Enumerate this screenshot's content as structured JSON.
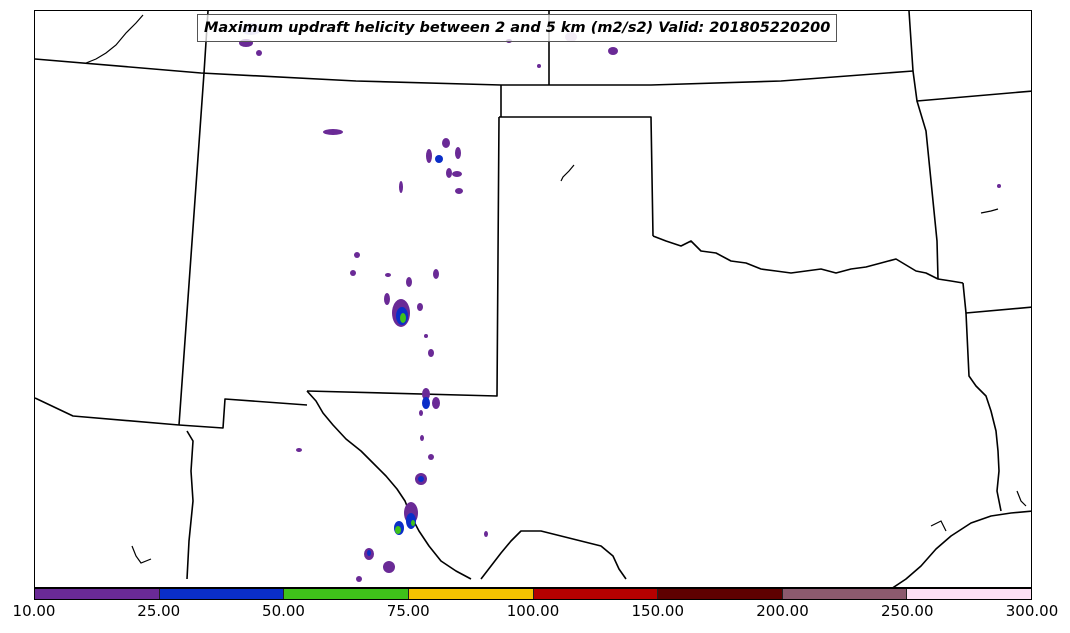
{
  "map": {
    "title": "Maximum updraft helicity between 2 and 5 km (m2/s2) Valid: 201805220200",
    "region": "Southern Plains / Southwest US",
    "colors": {
      "border": "#000000",
      "background": "#ffffff"
    }
  },
  "colorbar": {
    "segments": [
      {
        "from": "10.00",
        "to": "25.00",
        "color": "#6a2a96"
      },
      {
        "from": "25.00",
        "to": "50.00",
        "color": "#0a2ec8"
      },
      {
        "from": "50.00",
        "to": "75.00",
        "color": "#3fc21a"
      },
      {
        "from": "75.00",
        "to": "100.00",
        "color": "#f5c400"
      },
      {
        "from": "100.00",
        "to": "150.00",
        "color": "#b50000"
      },
      {
        "from": "150.00",
        "to": "200.00",
        "color": "#5e0000"
      },
      {
        "from": "200.00",
        "to": "250.00",
        "color": "#8c5a6e"
      },
      {
        "from": "250.00",
        "to": "300.00",
        "color": "#fde0f4"
      }
    ],
    "tick_labels": [
      "10.00",
      "25.00",
      "50.00",
      "75.00",
      "100.00",
      "150.00",
      "200.00",
      "250.00",
      "300.00"
    ]
  }
}
